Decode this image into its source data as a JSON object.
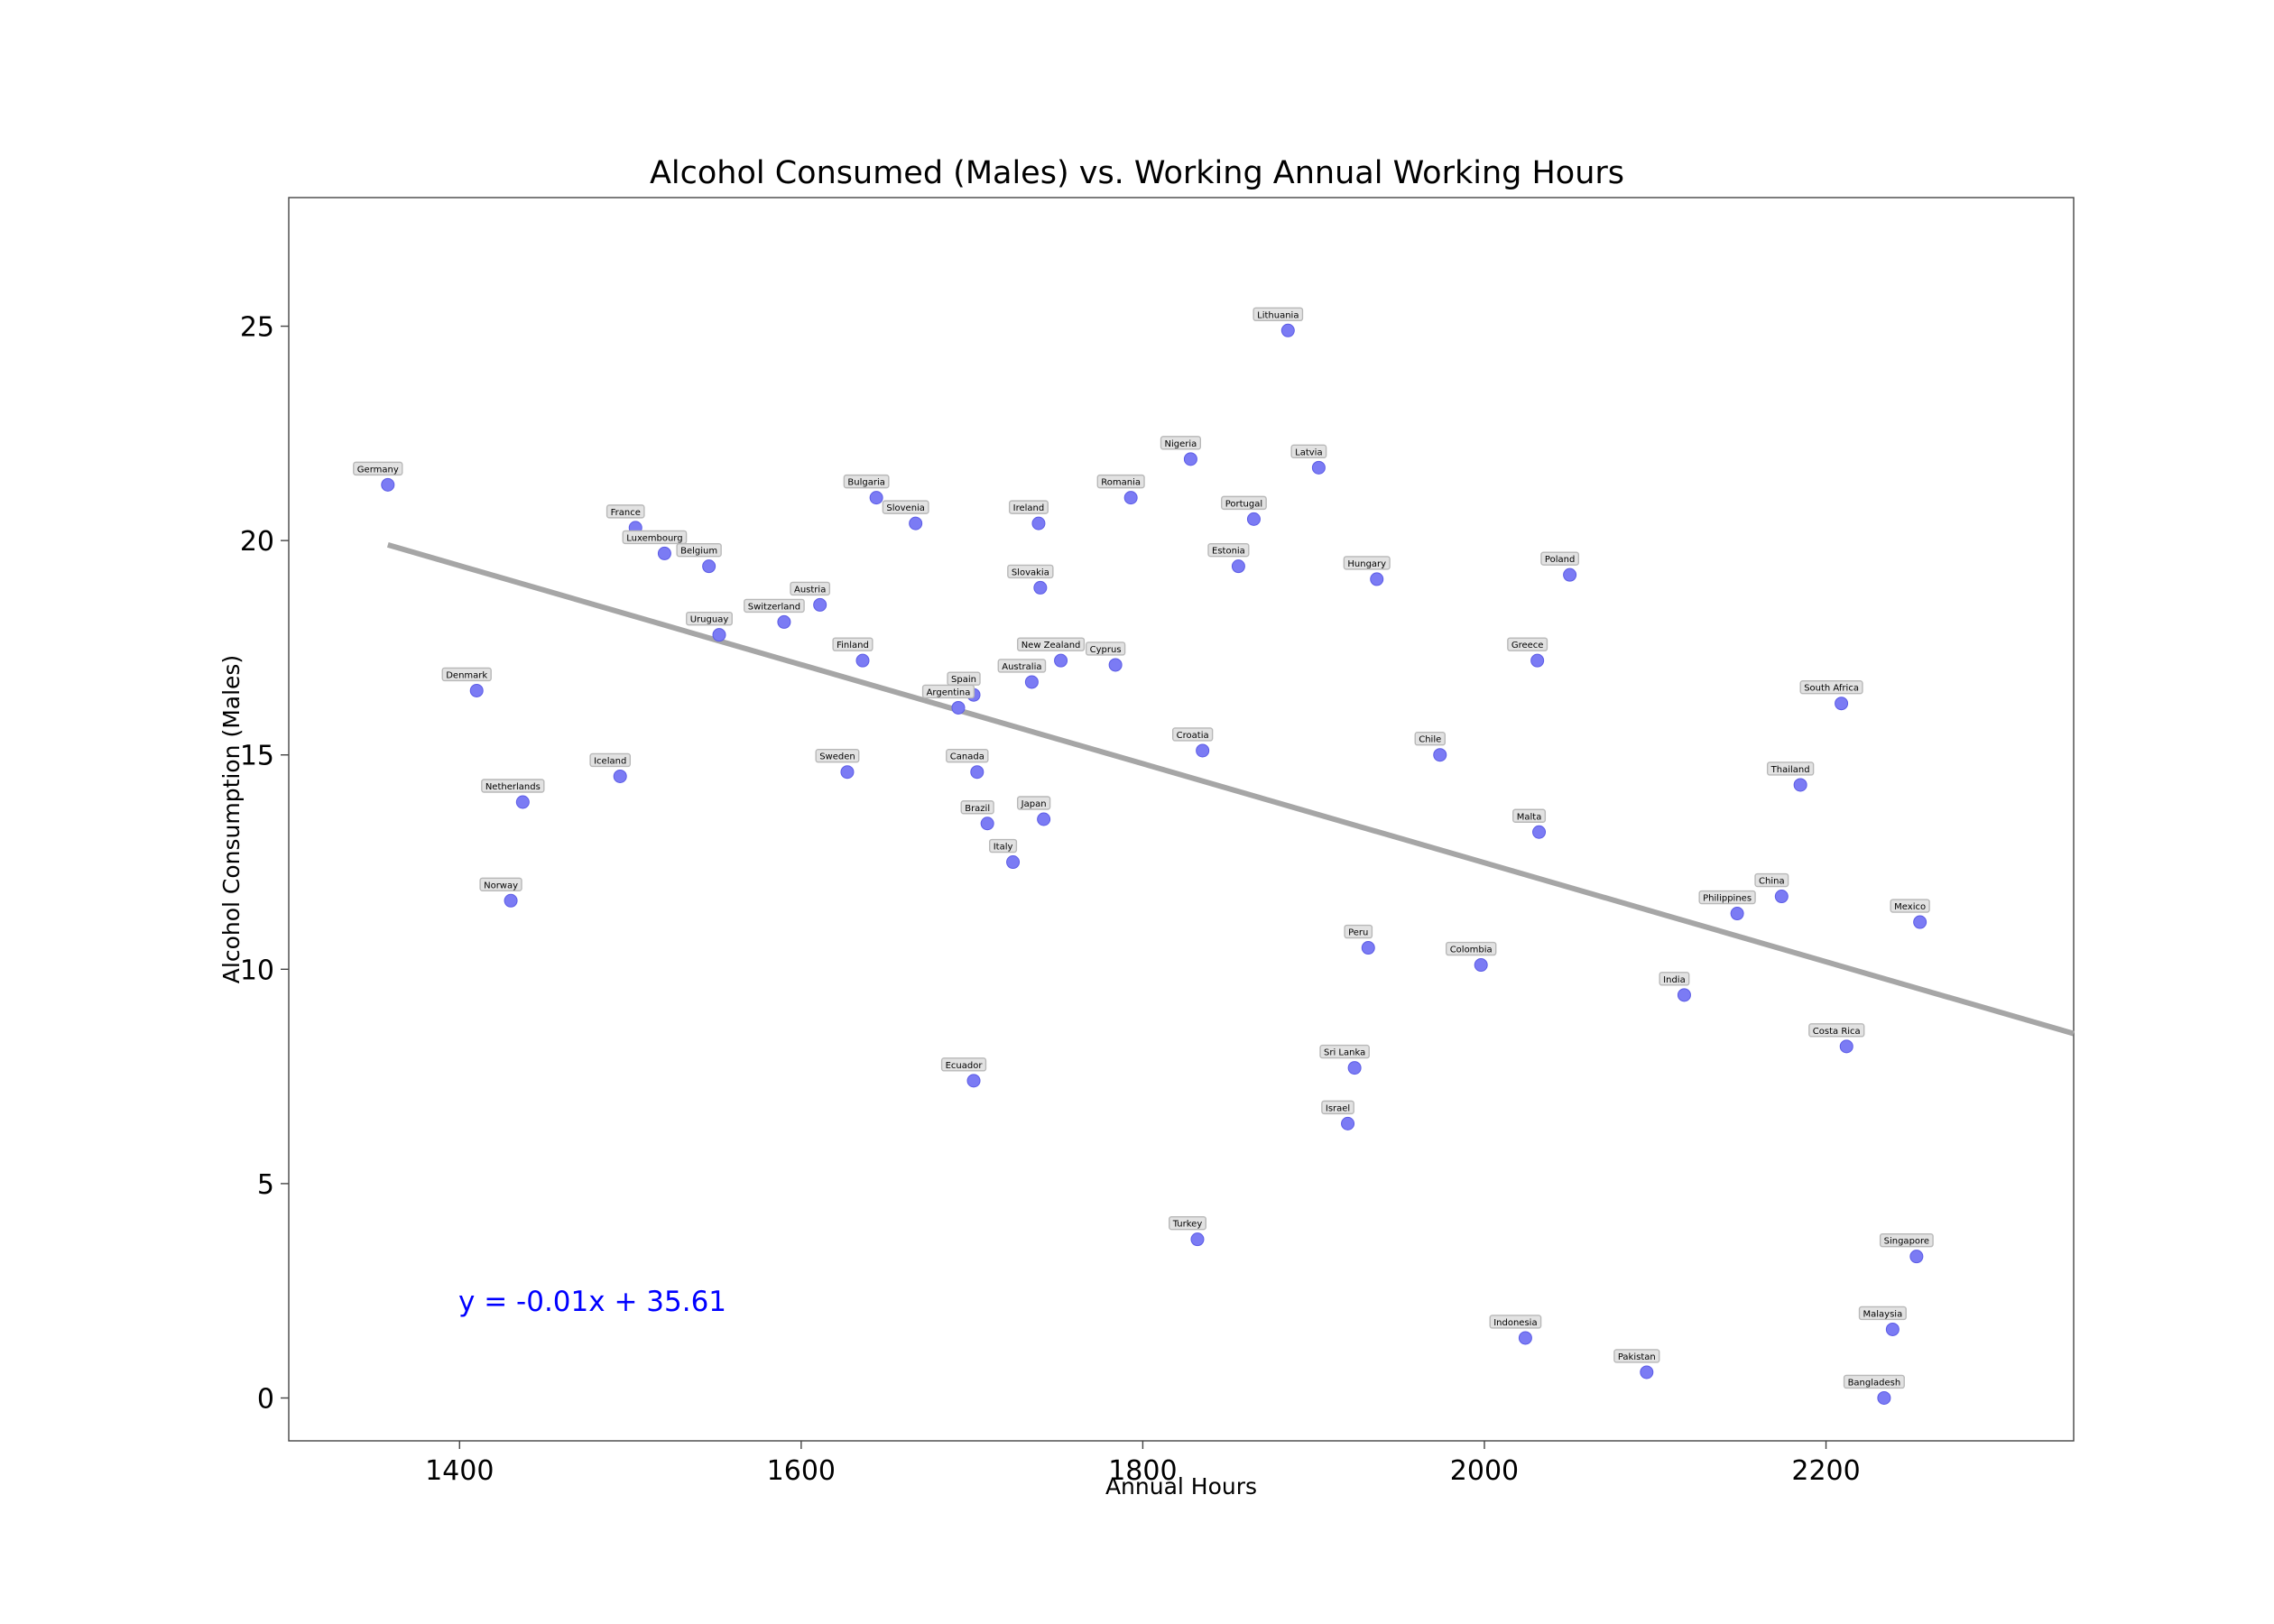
{
  "chart_data": {
    "type": "scatter",
    "title": "Alcohol Consumed (Males) vs. Working Annual Working Hours",
    "xlabel": "Annual Hours",
    "ylabel": "Alcohol Consumption (Males)",
    "xlim": [
      1300,
      2345
    ],
    "ylim": [
      -1,
      28
    ],
    "xticks": [
      1400,
      1600,
      1800,
      2000,
      2200
    ],
    "yticks": [
      0,
      5,
      10,
      15,
      20,
      25
    ],
    "grid": false,
    "point_color": "#7b7bf4",
    "regression": {
      "equation": "y = -0.01x + 35.61",
      "x": [
        1358,
        2345
      ],
      "y": [
        19.9,
        8.5
      ],
      "color": "#a6a6a6"
    },
    "points": [
      {
        "name": "Germany",
        "x": 1358,
        "y": 21.3
      },
      {
        "name": "France",
        "x": 1503,
        "y": 20.3
      },
      {
        "name": "Luxembourg",
        "x": 1520,
        "y": 19.7
      },
      {
        "name": "Belgium",
        "x": 1546,
        "y": 19.4
      },
      {
        "name": "Austria",
        "x": 1611,
        "y": 18.5
      },
      {
        "name": "Switzerland",
        "x": 1590,
        "y": 18.1
      },
      {
        "name": "Uruguay",
        "x": 1552,
        "y": 17.8
      },
      {
        "name": "Denmark",
        "x": 1410,
        "y": 16.5
      },
      {
        "name": "Iceland",
        "x": 1494,
        "y": 14.5
      },
      {
        "name": "Netherlands",
        "x": 1437,
        "y": 13.9
      },
      {
        "name": "Norway",
        "x": 1430,
        "y": 11.6
      },
      {
        "name": "Bulgaria",
        "x": 1644,
        "y": 21.0
      },
      {
        "name": "Slovenia",
        "x": 1667,
        "y": 20.4
      },
      {
        "name": "Ireland",
        "x": 1739,
        "y": 20.4
      },
      {
        "name": "Finland",
        "x": 1636,
        "y": 17.2
      },
      {
        "name": "Sweden",
        "x": 1627,
        "y": 14.6
      },
      {
        "name": "Spain",
        "x": 1701,
        "y": 16.4
      },
      {
        "name": "Argentina",
        "x": 1692,
        "y": 16.1
      },
      {
        "name": "Australia",
        "x": 1735,
        "y": 16.7
      },
      {
        "name": "New Zealand",
        "x": 1752,
        "y": 17.2
      },
      {
        "name": "Cyprus",
        "x": 1784,
        "y": 17.1
      },
      {
        "name": "Slovakia",
        "x": 1740,
        "y": 18.9
      },
      {
        "name": "Canada",
        "x": 1703,
        "y": 14.6
      },
      {
        "name": "Brazil",
        "x": 1709,
        "y": 13.4
      },
      {
        "name": "Japan",
        "x": 1742,
        "y": 13.5
      },
      {
        "name": "Italy",
        "x": 1724,
        "y": 12.5
      },
      {
        "name": "Ecuador",
        "x": 1701,
        "y": 7.4
      },
      {
        "name": "Romania",
        "x": 1793,
        "y": 21.0
      },
      {
        "name": "Nigeria",
        "x": 1828,
        "y": 21.9
      },
      {
        "name": "Lithuania",
        "x": 1885,
        "y": 24.9
      },
      {
        "name": "Latvia",
        "x": 1903,
        "y": 21.7
      },
      {
        "name": "Portugal",
        "x": 1865,
        "y": 20.5
      },
      {
        "name": "Estonia",
        "x": 1856,
        "y": 19.4
      },
      {
        "name": "Hungary",
        "x": 1937,
        "y": 19.1
      },
      {
        "name": "Croatia",
        "x": 1835,
        "y": 15.1
      },
      {
        "name": "Turkey",
        "x": 1832,
        "y": 3.7
      },
      {
        "name": "Chile",
        "x": 1974,
        "y": 15.0
      },
      {
        "name": "Greece",
        "x": 2031,
        "y": 17.2
      },
      {
        "name": "Poland",
        "x": 2050,
        "y": 19.2
      },
      {
        "name": "Malta",
        "x": 2032,
        "y": 13.2
      },
      {
        "name": "Peru",
        "x": 1932,
        "y": 10.5
      },
      {
        "name": "Colombia",
        "x": 1998,
        "y": 10.1
      },
      {
        "name": "Sri Lanka",
        "x": 1924,
        "y": 7.7
      },
      {
        "name": "Israel",
        "x": 1920,
        "y": 6.4
      },
      {
        "name": "Indonesia",
        "x": 2024,
        "y": 1.4
      },
      {
        "name": "Pakistan",
        "x": 2095,
        "y": 0.6
      },
      {
        "name": "India",
        "x": 2117,
        "y": 9.4
      },
      {
        "name": "Philippines",
        "x": 2148,
        "y": 11.3
      },
      {
        "name": "China",
        "x": 2174,
        "y": 11.7
      },
      {
        "name": "South Africa",
        "x": 2209,
        "y": 16.2
      },
      {
        "name": "Thailand",
        "x": 2185,
        "y": 14.3
      },
      {
        "name": "Costa Rica",
        "x": 2212,
        "y": 8.2
      },
      {
        "name": "Mexico",
        "x": 2255,
        "y": 11.1
      },
      {
        "name": "Singapore",
        "x": 2253,
        "y": 3.3
      },
      {
        "name": "Malaysia",
        "x": 2239,
        "y": 1.6
      },
      {
        "name": "Bangladesh",
        "x": 2234,
        "y": 0.0
      }
    ]
  }
}
